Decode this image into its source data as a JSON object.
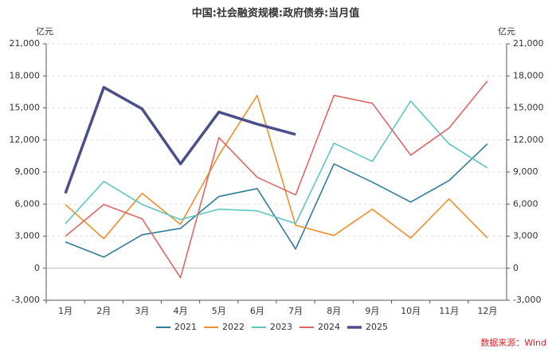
{
  "chart_data": {
    "type": "line",
    "title": "中国:社会融资规模:政府债券:当月值",
    "y_unit": "亿元",
    "y2_unit": "亿元",
    "source": "数据来源：Wind",
    "categories": [
      "1月",
      "2月",
      "3月",
      "4月",
      "5月",
      "6月",
      "7月",
      "8月",
      "9月",
      "10月",
      "11月",
      "12月"
    ],
    "series": [
      {
        "name": "2021",
        "color": "#2e7d9a",
        "values": [
          2460,
          1040,
          3130,
          3730,
          6710,
          7450,
          1790,
          9760,
          8050,
          6190,
          8200,
          11630
        ]
      },
      {
        "name": "2022",
        "color": "#f28e2b",
        "values": [
          5960,
          2760,
          7010,
          4100,
          10580,
          16170,
          4020,
          3060,
          5520,
          2830,
          6480,
          2830
        ]
      },
      {
        "name": "2023",
        "color": "#5cc8c0",
        "values": [
          4170,
          8120,
          5960,
          4550,
          5520,
          5370,
          4170,
          11700,
          9990,
          15650,
          11630,
          9390
        ]
      },
      {
        "name": "2024",
        "color": "#e06666",
        "values": [
          2980,
          5960,
          4620,
          -890,
          12220,
          8500,
          6860,
          16170,
          15430,
          10580,
          13120,
          17520
        ]
      },
      {
        "name": "2025",
        "color": "#4a4f8c",
        "width": 3.5,
        "values": [
          7010,
          16920,
          14910,
          9760,
          14610,
          13490,
          12520,
          null,
          null,
          null,
          null,
          null
        ]
      }
    ],
    "ylim": [
      -3000,
      21000
    ],
    "yticks": [
      {
        "value": -3000,
        "label": "-3,000"
      },
      0,
      {
        "value": 3000,
        "label": "3,000"
      },
      {
        "value": 6000,
        "label": "6,000"
      },
      {
        "value": 9000,
        "label": "9,000"
      },
      {
        "value": 12000,
        "label": "12,000"
      },
      {
        "value": 15000,
        "label": "15,000"
      },
      {
        "value": 18000,
        "label": "18,000"
      },
      {
        "value": 21000,
        "label": "21,000"
      }
    ],
    "y2lim": [
      -3000,
      21000
    ],
    "y2ticks": [
      {
        "value": -3000,
        "label": "-3,000"
      },
      0,
      {
        "value": 3000,
        "label": "3,000"
      },
      {
        "value": 6000,
        "label": "6,000"
      },
      {
        "value": 9000,
        "label": "9,000"
      },
      {
        "value": 12000,
        "label": "12,000"
      },
      {
        "value": 15000,
        "label": "15,000"
      },
      {
        "value": 18000,
        "label": "18,000"
      },
      {
        "value": 21000,
        "label": "21,000"
      }
    ],
    "grid": true,
    "legend": "bottom"
  }
}
